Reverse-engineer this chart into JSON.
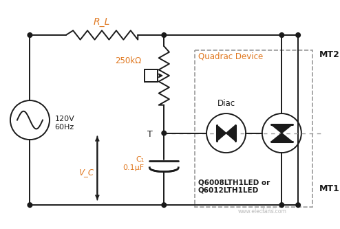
{
  "bg_color": "#ffffff",
  "line_color": "#1a1a1a",
  "orange_color": "#e07820",
  "watermark": "www.elecfans.com",
  "RL_label": "R_L",
  "V_source_label": "120V\n60Hz",
  "R250k_label": "250kΩ",
  "Vc_label": "V_C",
  "C1_label": "C₁\n0.1μF",
  "T_label": "T",
  "Quadrac_label": "Quadrac Device",
  "Diac_label": "Diac",
  "MT2_label": "MT2",
  "MT1_label": "MT1",
  "Q_model_label": "Q6008LTH1LED or\nQ6012LTH1LED"
}
